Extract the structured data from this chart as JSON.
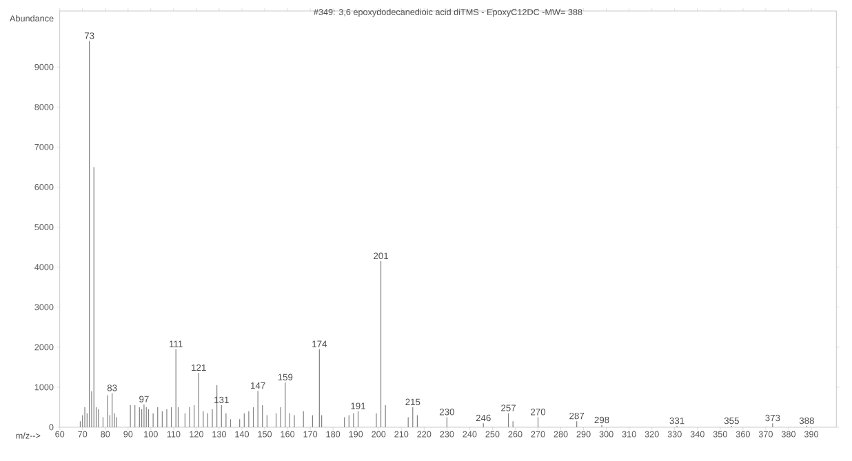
{
  "chart_data": {
    "type": "bar",
    "title": "#349: 3,6 epoxydodecanedioic acid diTMS - EpoxyC12DC -MW= 388",
    "xlabel": "m/z-->",
    "ylabel": "Abundance",
    "color": "#808080",
    "x": [
      69,
      70,
      71,
      72,
      73,
      74,
      75,
      76,
      77,
      79,
      81,
      82,
      83,
      84,
      85,
      91,
      93,
      95,
      96,
      97,
      98,
      99,
      101,
      103,
      105,
      107,
      109,
      111,
      112,
      115,
      117,
      119,
      121,
      123,
      125,
      127,
      129,
      131,
      133,
      135,
      139,
      141,
      143,
      145,
      147,
      149,
      151,
      155,
      157,
      159,
      161,
      163,
      167,
      171,
      174,
      175,
      185,
      187,
      189,
      191,
      199,
      201,
      203,
      213,
      215,
      217,
      230,
      246,
      257,
      259,
      270,
      287,
      298,
      331,
      355,
      373,
      388
    ],
    "values": [
      150,
      300,
      500,
      350,
      9650,
      900,
      6500,
      500,
      450,
      250,
      800,
      300,
      850,
      350,
      250,
      550,
      550,
      500,
      450,
      570,
      500,
      450,
      350,
      500,
      400,
      450,
      500,
      1950,
      500,
      350,
      500,
      550,
      1360,
      400,
      350,
      450,
      1050,
      550,
      350,
      200,
      200,
      350,
      400,
      500,
      910,
      550,
      300,
      350,
      500,
      1120,
      350,
      300,
      400,
      300,
      1950,
      300,
      250,
      300,
      350,
      400,
      350,
      4150,
      550,
      250,
      500,
      300,
      250,
      100,
      350,
      150,
      250,
      150,
      50,
      30,
      30,
      100,
      30
    ],
    "annotations": [
      {
        "text": "73",
        "x": 73,
        "y": 9650
      },
      {
        "text": "83",
        "x": 83,
        "y": 850
      },
      {
        "text": "97",
        "x": 97,
        "y": 570
      },
      {
        "text": "111",
        "x": 111,
        "y": 1950
      },
      {
        "text": "121",
        "x": 121,
        "y": 1360
      },
      {
        "text": "131",
        "x": 131,
        "y": 550
      },
      {
        "text": "147",
        "x": 147,
        "y": 910
      },
      {
        "text": "159",
        "x": 159,
        "y": 1120
      },
      {
        "text": "174",
        "x": 174,
        "y": 1950
      },
      {
        "text": "191",
        "x": 191,
        "y": 400
      },
      {
        "text": "201",
        "x": 201,
        "y": 4150
      },
      {
        "text": "215",
        "x": 215,
        "y": 500
      },
      {
        "text": "230",
        "x": 230,
        "y": 250
      },
      {
        "text": "246",
        "x": 246,
        "y": 100
      },
      {
        "text": "257",
        "x": 257,
        "y": 350
      },
      {
        "text": "270",
        "x": 270,
        "y": 250
      },
      {
        "text": "287",
        "x": 287,
        "y": 150
      },
      {
        "text": "298",
        "x": 298,
        "y": 50
      },
      {
        "text": "331",
        "x": 331,
        "y": 30
      },
      {
        "text": "355",
        "x": 355,
        "y": 30
      },
      {
        "text": "373",
        "x": 373,
        "y": 100
      },
      {
        "text": "388",
        "x": 388,
        "y": 30
      }
    ],
    "xlim": [
      60,
      401
    ],
    "ylim": [
      0,
      10400
    ],
    "xticks": [
      60,
      70,
      80,
      90,
      100,
      110,
      120,
      130,
      140,
      150,
      160,
      170,
      180,
      190,
      200,
      210,
      220,
      230,
      240,
      250,
      260,
      270,
      280,
      290,
      300,
      310,
      320,
      330,
      340,
      350,
      360,
      370,
      380,
      390
    ],
    "yticks": [
      0,
      1000,
      2000,
      3000,
      4000,
      5000,
      6000,
      7000,
      8000,
      9000
    ]
  }
}
